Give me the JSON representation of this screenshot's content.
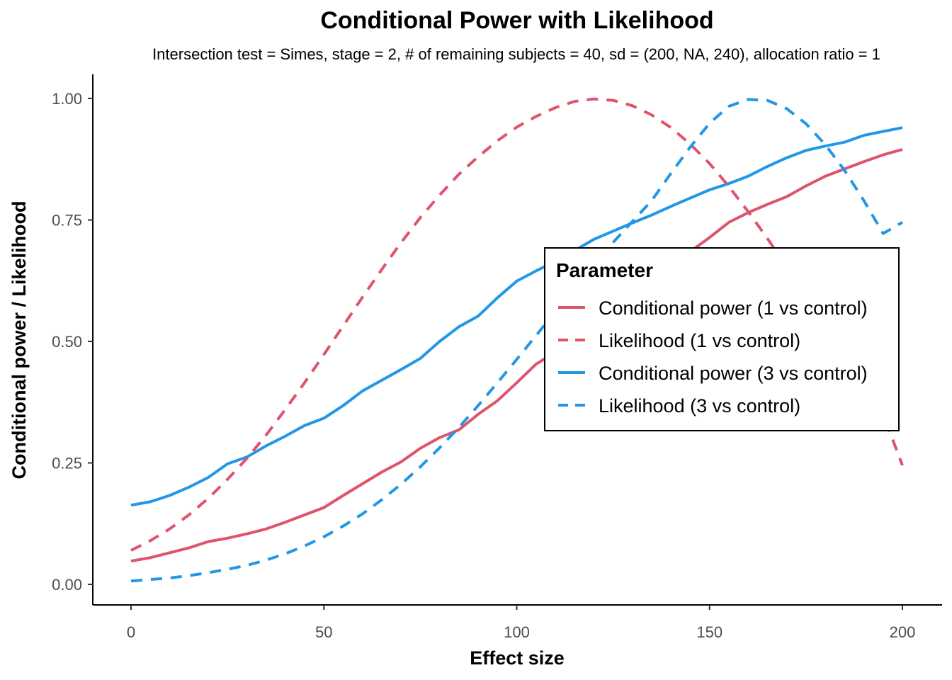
{
  "chart_data": {
    "type": "line",
    "title": "Conditional Power with Likelihood",
    "subtitle": "Intersection test = Simes, stage = 2, # of remaining subjects = 40, sd = (200, NA, 240), allocation ratio = 1",
    "xlabel": "Effect size",
    "ylabel": "Conditional power / Likelihood",
    "xlim": [
      0,
      200
    ],
    "ylim": [
      0,
      1
    ],
    "x_ticks": [
      0,
      50,
      100,
      150,
      200
    ],
    "x_tick_labels": [
      "0",
      "50",
      "100",
      "150",
      "200"
    ],
    "y_ticks": [
      0,
      0.25,
      0.5,
      0.75,
      1.0
    ],
    "y_tick_labels": [
      "0.00",
      "0.25",
      "0.50",
      "0.75",
      "1.00"
    ],
    "grid": false,
    "legend": {
      "title": "Parameter",
      "position": "center-right",
      "entries": [
        "Conditional power (1 vs control)",
        "Likelihood (1 vs control)",
        "Conditional power (3 vs control)",
        "Likelihood (3 vs control)"
      ]
    },
    "x": [
      0,
      5,
      10,
      15,
      20,
      25,
      30,
      35,
      40,
      45,
      50,
      55,
      60,
      65,
      70,
      75,
      80,
      85,
      90,
      95,
      100,
      105,
      110,
      115,
      120,
      125,
      130,
      135,
      140,
      145,
      150,
      155,
      160,
      165,
      170,
      175,
      180,
      185,
      190,
      195,
      200
    ],
    "series": [
      {
        "name": "Conditional power (1 vs control)",
        "color": "#DF536B",
        "style": "solid",
        "values": [
          0.048,
          0.055,
          0.065,
          0.075,
          0.088,
          0.095,
          0.104,
          0.114,
          0.128,
          0.143,
          0.158,
          0.183,
          0.207,
          0.231,
          0.252,
          0.28,
          0.302,
          0.318,
          0.35,
          0.378,
          0.415,
          0.453,
          0.478,
          0.508,
          0.54,
          0.568,
          0.6,
          0.628,
          0.658,
          0.685,
          0.714,
          0.745,
          0.765,
          0.782,
          0.798,
          0.82,
          0.84,
          0.855,
          0.87,
          0.884,
          0.895
        ]
      },
      {
        "name": "Likelihood (1 vs control)",
        "color": "#DF536B",
        "style": "dashed",
        "values": [
          0.07,
          0.09,
          0.114,
          0.143,
          0.177,
          0.216,
          0.259,
          0.307,
          0.36,
          0.415,
          0.473,
          0.532,
          0.591,
          0.648,
          0.703,
          0.755,
          0.801,
          0.844,
          0.88,
          0.913,
          0.941,
          0.963,
          0.981,
          0.994,
          0.999,
          0.996,
          0.985,
          0.966,
          0.94,
          0.906,
          0.866,
          0.819,
          0.767,
          0.712,
          0.653,
          0.592,
          0.53,
          0.468,
          0.408,
          0.35,
          0.245
        ]
      },
      {
        "name": "Conditional power (3 vs control)",
        "color": "#2297E6",
        "style": "solid",
        "values": [
          0.163,
          0.17,
          0.183,
          0.2,
          0.22,
          0.248,
          0.262,
          0.285,
          0.305,
          0.327,
          0.342,
          0.368,
          0.398,
          0.42,
          0.442,
          0.465,
          0.5,
          0.53,
          0.552,
          0.59,
          0.624,
          0.645,
          0.665,
          0.687,
          0.71,
          0.727,
          0.744,
          0.76,
          0.778,
          0.795,
          0.812,
          0.825,
          0.84,
          0.86,
          0.878,
          0.893,
          0.902,
          0.91,
          0.924,
          0.932,
          0.94
        ]
      },
      {
        "name": "Likelihood (3 vs control)",
        "color": "#2297E6",
        "style": "dashed",
        "values": [
          0.007,
          0.01,
          0.013,
          0.018,
          0.024,
          0.031,
          0.039,
          0.05,
          0.063,
          0.079,
          0.098,
          0.12,
          0.145,
          0.174,
          0.206,
          0.242,
          0.281,
          0.323,
          0.368,
          0.415,
          0.463,
          0.512,
          0.561,
          0.61,
          0.658,
          0.704,
          0.747,
          0.79,
          0.846,
          0.9,
          0.949,
          0.984,
          0.998,
          0.996,
          0.979,
          0.948,
          0.905,
          0.852,
          0.79,
          0.722,
          0.745
        ]
      }
    ]
  }
}
